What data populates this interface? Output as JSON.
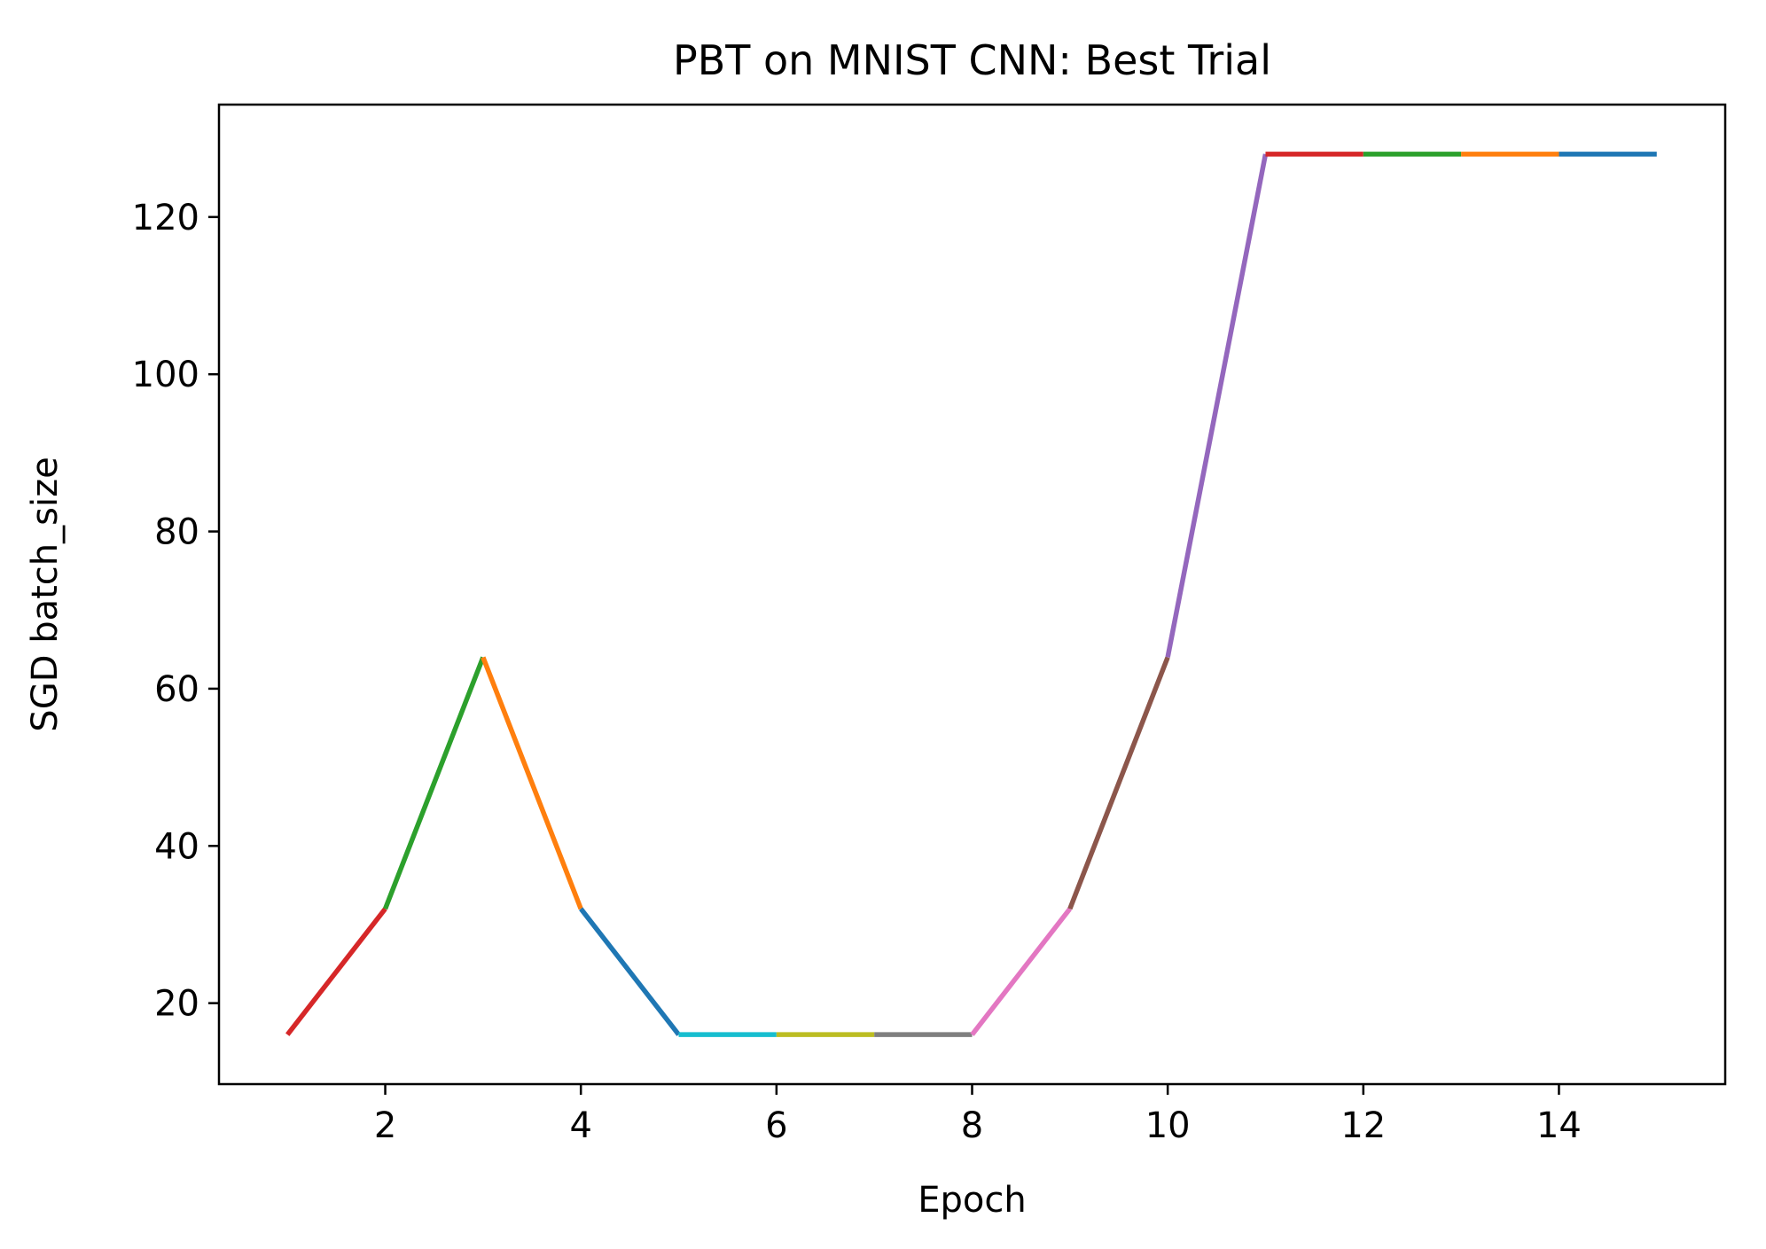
{
  "chart_data": {
    "type": "line",
    "title": "PBT on MNIST CNN: Best Trial",
    "xlabel": "Epoch",
    "ylabel": "SGD batch_size",
    "xlim": [
      0.3,
      15.7
    ],
    "ylim": [
      9.7,
      134.3
    ],
    "grid": false,
    "x_ticks": [
      2,
      4,
      6,
      8,
      10,
      12,
      14
    ],
    "y_ticks": [
      20,
      40,
      60,
      80,
      100,
      120
    ],
    "x_tick_labels": [
      "2",
      "4",
      "6",
      "8",
      "10",
      "12",
      "14"
    ],
    "y_tick_labels": [
      "20",
      "40",
      "60",
      "80",
      "100",
      "120"
    ],
    "x": [
      1,
      2,
      3,
      4,
      5,
      6,
      7,
      8,
      9,
      10,
      11,
      12,
      13,
      14,
      15
    ],
    "values": [
      16,
      32,
      64,
      32,
      16,
      16,
      16,
      16,
      32,
      64,
      128,
      128,
      128,
      128,
      128
    ],
    "segment_colors": [
      "#d62728",
      "#2ca02c",
      "#ff7f0e",
      "#1f77b4",
      "#17becf",
      "#bcbd22",
      "#7f7f7f",
      "#e377c2",
      "#8c564b",
      "#9467bd",
      "#d62728",
      "#2ca02c",
      "#ff7f0e",
      "#1f77b4"
    ]
  }
}
